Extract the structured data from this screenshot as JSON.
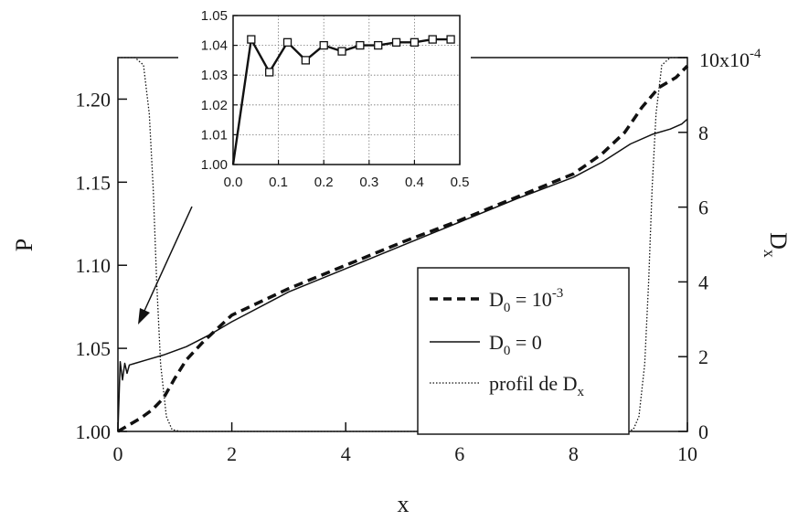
{
  "chart_data": [
    {
      "type": "line",
      "xlabel": "x",
      "ylabel": "P",
      "y2label": "D",
      "y2label_sub": "x",
      "xlim": [
        0,
        10
      ],
      "ylim": [
        1.0,
        1.225
      ],
      "y2lim": [
        0,
        10
      ],
      "y2_tick_top_label": "10x10",
      "y2_tick_top_exp": "-4",
      "xticks": [
        "0",
        "2",
        "4",
        "6",
        "8",
        "10"
      ],
      "yticks": [
        "1.00",
        "1.05",
        "1.10",
        "1.15",
        "1.20"
      ],
      "y2ticks": [
        "0",
        "2",
        "4",
        "6",
        "8"
      ],
      "legend": {
        "placement": "lower-right",
        "entries": [
          {
            "pre": "D",
            "sub": "0",
            "mid": " = 10",
            "sup": "-3",
            "style": "dashed"
          },
          {
            "pre": "D",
            "sub": "0",
            "mid": " = 0",
            "sup": "",
            "style": "solid"
          },
          {
            "pre": "profil de D",
            "sub": "x",
            "mid": "",
            "sup": "",
            "style": "dotted"
          }
        ]
      },
      "series": [
        {
          "style": "dashed",
          "x": [
            0,
            0.2,
            0.4,
            0.6,
            0.8,
            1.0,
            1.2,
            1.5,
            2.0,
            3.0,
            4.0,
            5.0,
            6.0,
            7.0,
            8.0,
            8.5,
            8.9,
            9.2,
            9.5,
            9.8,
            10.0
          ],
          "y": [
            1.0,
            1.004,
            1.008,
            1.013,
            1.02,
            1.032,
            1.043,
            1.054,
            1.07,
            1.086,
            1.1,
            1.114,
            1.127,
            1.141,
            1.155,
            1.167,
            1.18,
            1.195,
            1.207,
            1.213,
            1.22
          ]
        },
        {
          "style": "solid",
          "x": [
            0,
            0.04,
            0.08,
            0.12,
            0.16,
            0.2,
            0.3,
            0.5,
            0.8,
            1.2,
            1.6,
            2.0,
            3.0,
            4.0,
            5.0,
            6.0,
            7.0,
            8.0,
            8.5,
            9.0,
            9.4,
            9.7,
            9.9,
            10.0
          ],
          "y": [
            1.0,
            1.042,
            1.031,
            1.041,
            1.035,
            1.04,
            1.041,
            1.043,
            1.046,
            1.051,
            1.058,
            1.066,
            1.084,
            1.098,
            1.112,
            1.126,
            1.14,
            1.153,
            1.162,
            1.173,
            1.179,
            1.182,
            1.185,
            1.188
          ]
        },
        {
          "style": "dotted",
          "axis": "y2",
          "x": [
            0,
            0.3,
            0.45,
            0.55,
            0.62,
            0.68,
            0.75,
            0.85,
            0.95,
            1.1,
            8.9,
            9.05,
            9.15,
            9.25,
            9.32,
            9.38,
            9.45,
            9.55,
            9.7,
            10.0
          ],
          "y": [
            10,
            10,
            9.8,
            8.5,
            6.5,
            4.0,
            1.8,
            0.4,
            0.05,
            0,
            0,
            0.05,
            0.4,
            1.8,
            4.0,
            6.5,
            8.5,
            9.8,
            10,
            10
          ]
        }
      ]
    },
    {
      "type": "line",
      "xlim": [
        0,
        0.5
      ],
      "ylim": [
        1.0,
        1.05
      ],
      "xticks": [
        "0.0",
        "0.1",
        "0.2",
        "0.3",
        "0.4",
        "0.5"
      ],
      "yticks": [
        "1.00",
        "1.01",
        "1.02",
        "1.03",
        "1.04",
        "1.05"
      ],
      "grid": true,
      "series": [
        {
          "style": "solid-markers",
          "marker": "square",
          "x": [
            0,
            0.04,
            0.08,
            0.12,
            0.16,
            0.2,
            0.24,
            0.28,
            0.32,
            0.36,
            0.4,
            0.44,
            0.48
          ],
          "y": [
            1.0,
            1.042,
            1.031,
            1.041,
            1.035,
            1.04,
            1.038,
            1.04,
            1.04,
            1.041,
            1.041,
            1.042,
            1.042
          ]
        }
      ]
    }
  ]
}
